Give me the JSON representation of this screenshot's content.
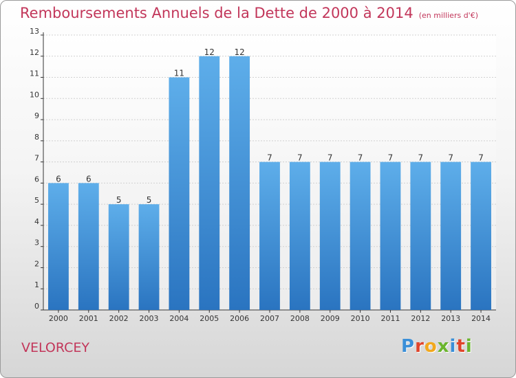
{
  "chart_data": {
    "type": "bar",
    "title": "Remboursements Annuels de la Dette de 2000 à 2014",
    "subtitle": "(en milliers d'€)",
    "categories": [
      "2000",
      "2001",
      "2002",
      "2003",
      "2004",
      "2005",
      "2006",
      "2007",
      "2008",
      "2009",
      "2010",
      "2011",
      "2012",
      "2013",
      "2014"
    ],
    "values": [
      6,
      6,
      5,
      5,
      11,
      12,
      12,
      7,
      7,
      7,
      7,
      7,
      7,
      7,
      7
    ],
    "ylim": [
      0,
      13
    ],
    "yticks": [
      0,
      1,
      2,
      3,
      4,
      5,
      6,
      7,
      8,
      9,
      10,
      11,
      12,
      13
    ],
    "grid": true,
    "bar_color": "#4a9be0"
  },
  "footer": {
    "commune": "VELORCEY",
    "logo_letters": [
      "P",
      "r",
      "o",
      "x",
      "i",
      "t",
      "i"
    ],
    "logo_colors": [
      "#3a8fd8",
      "#e0442b",
      "#f2a81d",
      "#6bb52e",
      "#3a8fd8",
      "#e0442b",
      "#6bb52e"
    ]
  },
  "colors": {
    "title": "#c2365a",
    "axis": "#333333",
    "grid": "#d0d0d0"
  }
}
